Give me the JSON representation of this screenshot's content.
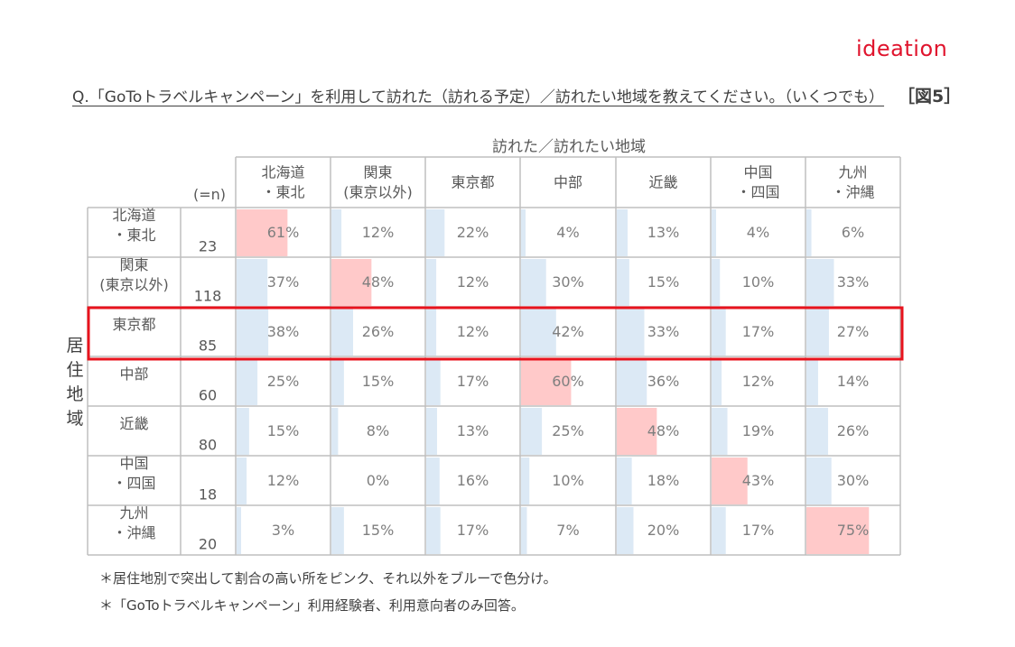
{
  "logo": "ideation",
  "question": "Q.「GoToトラベルキャンペーン」を利用して訪れた（訪れる予定）／訪れたい地域を教えてください。（いくつでも）",
  "figure_label": "［図5］",
  "n_label": "(=n)",
  "row_axis_label": [
    "居",
    "住",
    "地",
    "域"
  ],
  "notes": [
    "＊居住地別で突出して割合の高い所をピンク、それ以外をブルーで色分け。",
    "＊「GoToトラベルキャンペーン」利用経験者、利用意向者のみ回答。"
  ],
  "colors": {
    "pink": "#ffc9c9",
    "blue": "#dce9f5",
    "highlight_border": "#e8131d",
    "grid": "#bfbfbf"
  },
  "chart_data": {
    "type": "table",
    "title": "訪れた／訪れたい地域",
    "columns": [
      [
        "北海道",
        "・東北"
      ],
      [
        "関東",
        "(東京以外)"
      ],
      [
        "東京都"
      ],
      [
        "中部"
      ],
      [
        "近畿"
      ],
      [
        "中国",
        "・四国"
      ],
      [
        "九州",
        "・沖縄"
      ]
    ],
    "rows": [
      {
        "label": [
          "北海道",
          "・東北"
        ],
        "n": "23",
        "values": [
          61,
          12,
          22,
          4,
          13,
          4,
          6
        ],
        "value_labels": [
          "61%",
          "12%",
          "22%",
          "4%",
          "13%",
          "4%",
          "6%"
        ],
        "pink": [
          0
        ]
      },
      {
        "label": [
          "関東",
          "(東京以外)"
        ],
        "n": "118",
        "values": [
          37,
          48,
          12,
          30,
          15,
          10,
          33
        ],
        "value_labels": [
          "37%",
          "48%",
          "12%",
          "30%",
          "15%",
          "10%",
          "33%"
        ],
        "pink": [
          1
        ]
      },
      {
        "label": [
          "東京都"
        ],
        "n": "85",
        "values": [
          38,
          26,
          12,
          42,
          33,
          17,
          27
        ],
        "value_labels": [
          "38%",
          "26%",
          "12%",
          "42%",
          "33%",
          "17%",
          "27%"
        ],
        "pink": [],
        "highlighted": true
      },
      {
        "label": [
          "中部"
        ],
        "n": "60",
        "values": [
          25,
          15,
          17,
          60,
          36,
          12,
          14
        ],
        "value_labels": [
          "25%",
          "15%",
          "17%",
          "60%",
          "36%",
          "12%",
          "14%"
        ],
        "pink": [
          3
        ]
      },
      {
        "label": [
          "近畿"
        ],
        "n": "80",
        "values": [
          15,
          8,
          13,
          25,
          48,
          19,
          26
        ],
        "value_labels": [
          "15%",
          "8%",
          "13%",
          "25%",
          "48%",
          "19%",
          "26%"
        ],
        "pink": [
          4
        ]
      },
      {
        "label": [
          "中国",
          "・四国"
        ],
        "n": "18",
        "values": [
          12,
          0,
          16,
          10,
          18,
          43,
          30
        ],
        "value_labels": [
          "12%",
          "0%",
          "16%",
          "10%",
          "18%",
          "43%",
          "30%"
        ],
        "pink": [
          5
        ]
      },
      {
        "label": [
          "九州",
          "・沖縄"
        ],
        "n": "20",
        "values": [
          3,
          15,
          17,
          7,
          20,
          17,
          75
        ],
        "value_labels": [
          "3%",
          "15%",
          "17%",
          "7%",
          "20%",
          "17%",
          "75%"
        ],
        "pink": [
          6
        ]
      }
    ],
    "value_range": [
      0,
      100
    ],
    "unit": "%"
  }
}
